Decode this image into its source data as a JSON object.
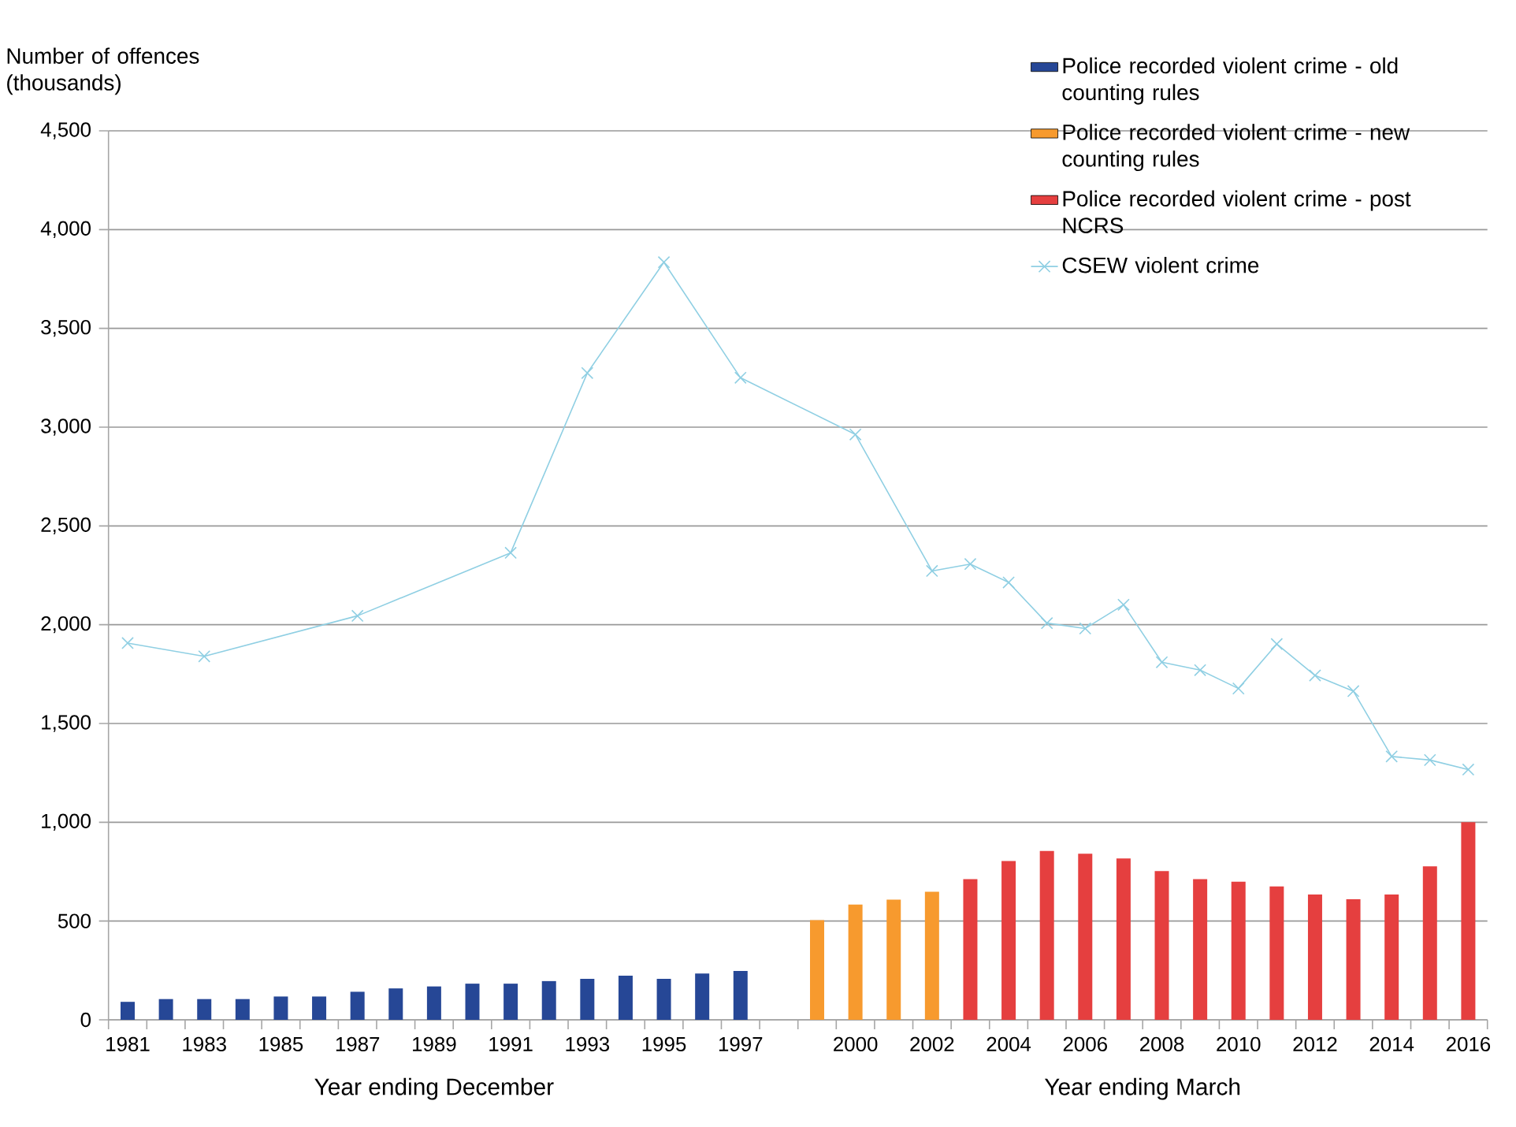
{
  "chart_data": {
    "type": "bar",
    "ylabel": "Number of offences (thousands)",
    "categories": [
      "1981",
      null,
      "1983",
      null,
      "1985",
      null,
      "1987",
      null,
      "1989",
      null,
      "1991",
      null,
      "1993",
      null,
      "1995",
      null,
      "1997",
      null,
      null,
      "2000",
      null,
      "2002",
      null,
      "2004",
      null,
      "2006",
      null,
      "2008",
      null,
      "2010",
      null,
      "2012",
      null,
      "2014",
      null,
      "2016"
    ],
    "series": [
      {
        "name": "Police recorded violent crime - old counting rules",
        "color": "#264796",
        "values": [
          91,
          105,
          105,
          105,
          118,
          118,
          142,
          159,
          169,
          183,
          183,
          196,
          207,
          223,
          207,
          234,
          247,
          null,
          null,
          null,
          null,
          null,
          null,
          null,
          null,
          null,
          null,
          null,
          null,
          null,
          null,
          null,
          null,
          null,
          null,
          null
        ]
      },
      {
        "name": "Police recorded violent crime - new counting rules",
        "color": "#f79a2e",
        "values": [
          null,
          null,
          null,
          null,
          null,
          null,
          null,
          null,
          null,
          null,
          null,
          null,
          null,
          null,
          null,
          null,
          null,
          null,
          505,
          583,
          608,
          648,
          null,
          null,
          null,
          null,
          null,
          null,
          null,
          null,
          null,
          null,
          null,
          null,
          null,
          null
        ]
      },
      {
        "name": "Police recorded violent crime - post NCRS",
        "color": "#e53f3f",
        "values": [
          null,
          null,
          null,
          null,
          null,
          null,
          null,
          null,
          null,
          null,
          null,
          null,
          null,
          null,
          null,
          null,
          null,
          null,
          null,
          null,
          null,
          null,
          712,
          804,
          855,
          841,
          817,
          753,
          712,
          699,
          675,
          634,
          610,
          634,
          777,
          1000
        ]
      },
      {
        "name": "CSEW violent crime",
        "type": "line",
        "color": "#8fcfe3",
        "marker": "cross",
        "values": [
          1907,
          null,
          1840,
          null,
          null,
          null,
          2045,
          null,
          null,
          null,
          2364,
          null,
          3274,
          null,
          3835,
          null,
          3250,
          null,
          null,
          2963,
          null,
          2272,
          2307,
          2214,
          2008,
          1981,
          2101,
          1810,
          1770,
          1677,
          1902,
          1743,
          1664,
          1333,
          1315,
          1267
        ]
      }
    ],
    "ylim": [
      0,
      4500
    ],
    "yticks": [
      0,
      500,
      {
        "value": 1000,
        "label": "1,000"
      },
      {
        "value": 1500,
        "label": "1,500"
      },
      {
        "value": 2000,
        "label": "2,000"
      },
      {
        "value": 2500,
        "label": "2,500"
      },
      {
        "value": 3000,
        "label": "3,000"
      },
      {
        "value": 3500,
        "label": "3,500"
      },
      {
        "value": 4000,
        "label": "4,000"
      },
      {
        "value": 4500,
        "label": "4,500"
      }
    ],
    "grid": "y",
    "legend": "top right",
    "annotations": [
      "Year ending December",
      "Year ending March"
    ]
  }
}
